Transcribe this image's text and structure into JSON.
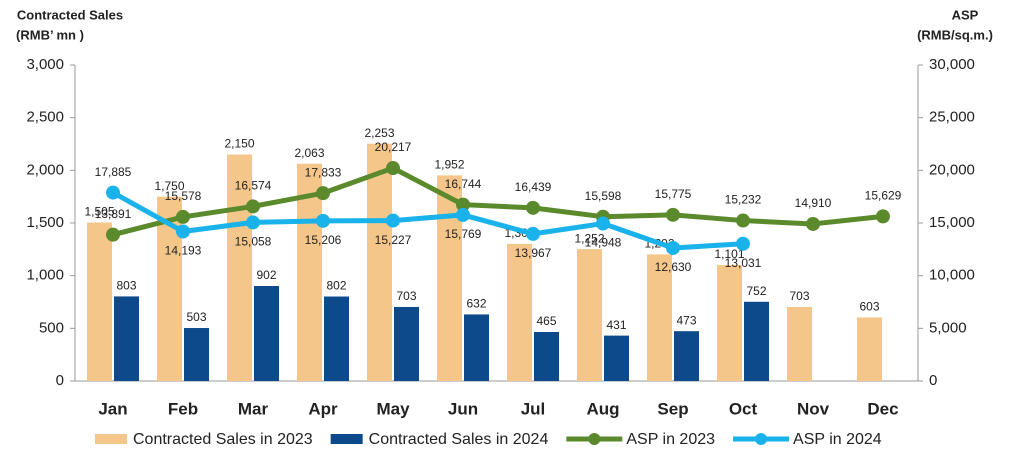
{
  "chart_data": {
    "type": "bar_line_combo",
    "y_label": "Contracted Sales",
    "y_label_unit": "(RMB’ mn )",
    "y2_label": "ASP",
    "y2_label_unit": "(RMB/sq.m.)",
    "categories": [
      "Jan",
      "Feb",
      "Mar",
      "Apr",
      "May",
      "Jun",
      "Jul",
      "Aug",
      "Sep",
      "Oct",
      "Nov",
      "Dec"
    ],
    "ylim": [
      0,
      3000
    ],
    "yticks": [
      0,
      500,
      {
        "value": 1000,
        "label": "1,000"
      },
      {
        "value": 1500,
        "label": "1,500"
      },
      {
        "value": 2000,
        "label": "2,000"
      },
      {
        "value": 2500,
        "label": "2,500"
      },
      {
        "value": 3000,
        "label": "3,000"
      }
    ],
    "y2lim": [
      0,
      30000
    ],
    "y2ticks": [
      0,
      {
        "value": 5000,
        "label": "5,000"
      },
      {
        "value": 10000,
        "label": "10,000"
      },
      {
        "value": 15000,
        "label": "15,000"
      },
      {
        "value": 20000,
        "label": "20,000"
      },
      {
        "value": 25000,
        "label": "25,000"
      },
      {
        "value": 30000,
        "label": "30,000"
      }
    ],
    "grid": false,
    "series": [
      {
        "name": "Contracted Sales in 2023",
        "kind": "bar",
        "color": "#f4c68a",
        "label_color": "#c4641c",
        "values": [
          1505,
          1750,
          2150,
          2063,
          2253,
          1952,
          1302,
          1252,
          1202,
          1101,
          703,
          603
        ],
        "value_labels": [
          "1,505",
          "1,750",
          "2,150",
          "2,063",
          "2,253",
          "1,952",
          "1,302",
          "1,252",
          "1,202",
          "1,101",
          "703",
          "603"
        ]
      },
      {
        "name": "Contracted Sales in 2024",
        "kind": "bar",
        "color": "#0d4a8c",
        "label_color": "#0d3a70",
        "values": [
          803,
          503,
          902,
          802,
          703,
          632,
          465,
          431,
          473,
          752,
          null,
          null
        ]
      },
      {
        "name": "ASP in 2023",
        "kind": "line",
        "axis": "y2",
        "color": "#5b8a2c",
        "label_color": "#3d5c1c",
        "values": [
          13891,
          15578,
          16574,
          17833,
          20217,
          16744,
          16439,
          15598,
          15775,
          15232,
          14910,
          15629
        ],
        "value_labels": [
          "13,891",
          "15,578",
          "16,574",
          "17,833",
          "20,217",
          "16,744",
          "16,439",
          "15,598",
          "15,775",
          "15,232",
          "14,910",
          "15,629"
        ]
      },
      {
        "name": "ASP in 2024",
        "kind": "line",
        "axis": "y2",
        "color": "#1ab2ea",
        "label_color": "#1aa4dc",
        "values": [
          17885,
          14193,
          15058,
          15206,
          15227,
          15769,
          13967,
          14948,
          12630,
          13031,
          null,
          null
        ],
        "value_labels": [
          "17,885",
          "14,193",
          "15,058",
          "15,206",
          "15,227",
          "15,769",
          "13,967",
          "14,948",
          "12,630",
          "13,031",
          null,
          null
        ]
      }
    ]
  }
}
